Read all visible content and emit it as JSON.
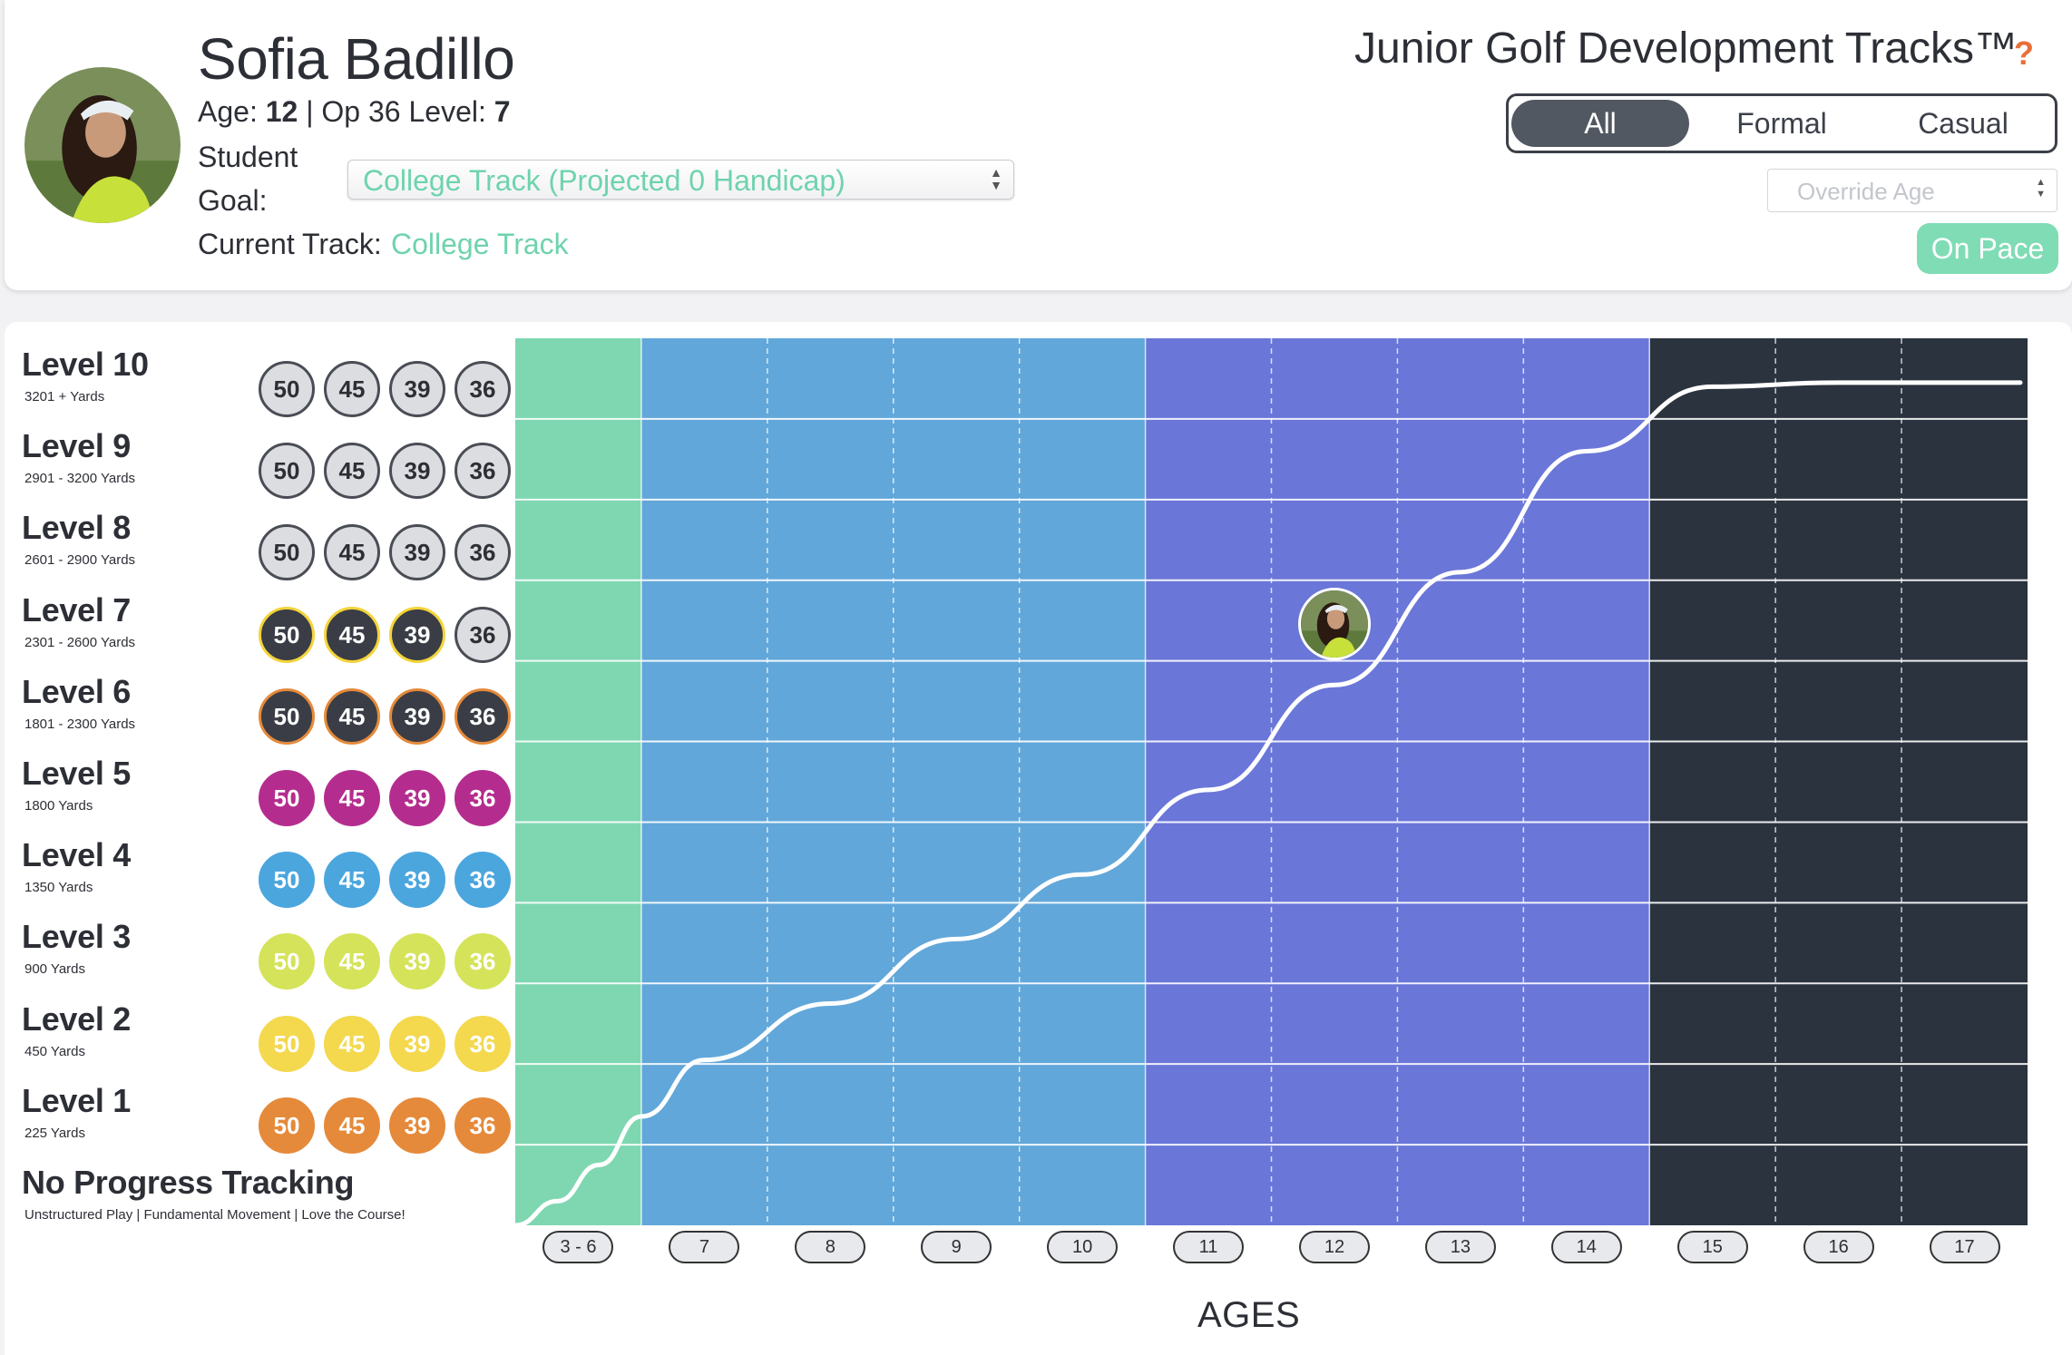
{
  "profile": {
    "name": "Sofia Badillo",
    "age_label": "Age: ",
    "age": "12",
    "sep": " | Op 36 Level: ",
    "level": "7",
    "student_label": "Student",
    "goal_label": "Goal:",
    "goal_value": "College Track (Projected 0 Handicap)",
    "current_track_label": "Current Track:",
    "current_track_value": "College Track"
  },
  "brand": {
    "title": "Junior Golf Development Tracks™",
    "help": "?"
  },
  "filter": {
    "options": [
      "All",
      "Formal",
      "Casual"
    ],
    "selected": "All"
  },
  "override_age": {
    "placeholder": "Override Age"
  },
  "status": {
    "label": "On Pace"
  },
  "levels": [
    {
      "title": "Level 10",
      "sub": "3201 + Yards"
    },
    {
      "title": "Level 9",
      "sub": "2901 - 3200 Yards"
    },
    {
      "title": "Level 8",
      "sub": "2601 - 2900 Yards"
    },
    {
      "title": "Level 7",
      "sub": "2301 - 2600 Yards"
    },
    {
      "title": "Level 6",
      "sub": "1801 - 2300 Yards"
    },
    {
      "title": "Level 5",
      "sub": "1800 Yards"
    },
    {
      "title": "Level 4",
      "sub": "1350 Yards"
    },
    {
      "title": "Level 3",
      "sub": "900 Yards"
    },
    {
      "title": "Level 2",
      "sub": "450 Yards"
    },
    {
      "title": "Level 1",
      "sub": "225 Yards"
    }
  ],
  "no_progress": {
    "title": "No Progress Tracking",
    "sub": "Unstructured Play | Fundamental Movement | Love the Course!"
  },
  "badge_values": [
    "50",
    "45",
    "39",
    "36"
  ],
  "badge_styles": [
    {
      "bg": "#dcdde0",
      "border": "#4a4d55",
      "fg": "#2d2f36"
    },
    {
      "bg": "#dcdde0",
      "border": "#4a4d55",
      "fg": "#2d2f36"
    },
    {
      "bg": "#dcdde0",
      "border": "#4a4d55",
      "fg": "#2d2f36"
    },
    {
      "bg": "#3a3d45",
      "border": "#f4d43a",
      "fg": "#ffffff",
      "last": {
        "bg": "#dcdde0",
        "border": "#4a4d55",
        "fg": "#2d2f36"
      }
    },
    {
      "bg": "#3a3d45",
      "border": "#e58a3a",
      "fg": "#ffffff"
    },
    {
      "bg": "#b42d8e",
      "border": "#b42d8e",
      "fg": "#ffffff"
    },
    {
      "bg": "#4ba6de",
      "border": "#4ba6de",
      "fg": "#ffffff"
    },
    {
      "bg": "#d5e35a",
      "border": "#d5e35a",
      "fg": "#ffffff"
    },
    {
      "bg": "#f4d84e",
      "border": "#f4d84e",
      "fg": "#ffffff"
    },
    {
      "bg": "#e58a3a",
      "border": "#e58a3a",
      "fg": "#ffffff"
    }
  ],
  "chart_data": {
    "type": "area",
    "x_categories": [
      "3 - 6",
      "7",
      "8",
      "9",
      "10",
      "11",
      "12",
      "13",
      "14",
      "15",
      "16",
      "17"
    ],
    "y_categories": [
      "No Progress Tracking",
      "Level 1",
      "Level 2",
      "Level 3",
      "Level 4",
      "Level 5",
      "Level 6",
      "Level 7",
      "Level 8",
      "Level 9",
      "Level 10"
    ],
    "xlabel": "AGES",
    "bands": [
      {
        "from": "3 - 6",
        "to": "3 - 6",
        "color": "#7ed7b1"
      },
      {
        "from": "7",
        "to": "10",
        "color": "#61a7da"
      },
      {
        "from": "11",
        "to": "14",
        "color": "#6a76d8"
      },
      {
        "from": "15",
        "to": "17",
        "color": "#2b333f"
      }
    ],
    "series": [
      {
        "x": [
          3,
          4,
          5,
          6,
          7,
          8,
          9,
          10,
          11,
          12,
          13,
          14,
          15,
          16,
          17
        ],
        "y": [
          0.0,
          0.3,
          0.75,
          1.35,
          2.05,
          2.75,
          3.55,
          4.35,
          5.4,
          6.7,
          8.1,
          9.6,
          10.4,
          10.45,
          10.45
        ]
      }
    ],
    "player_marker": {
      "age": 12,
      "level": 7
    }
  }
}
